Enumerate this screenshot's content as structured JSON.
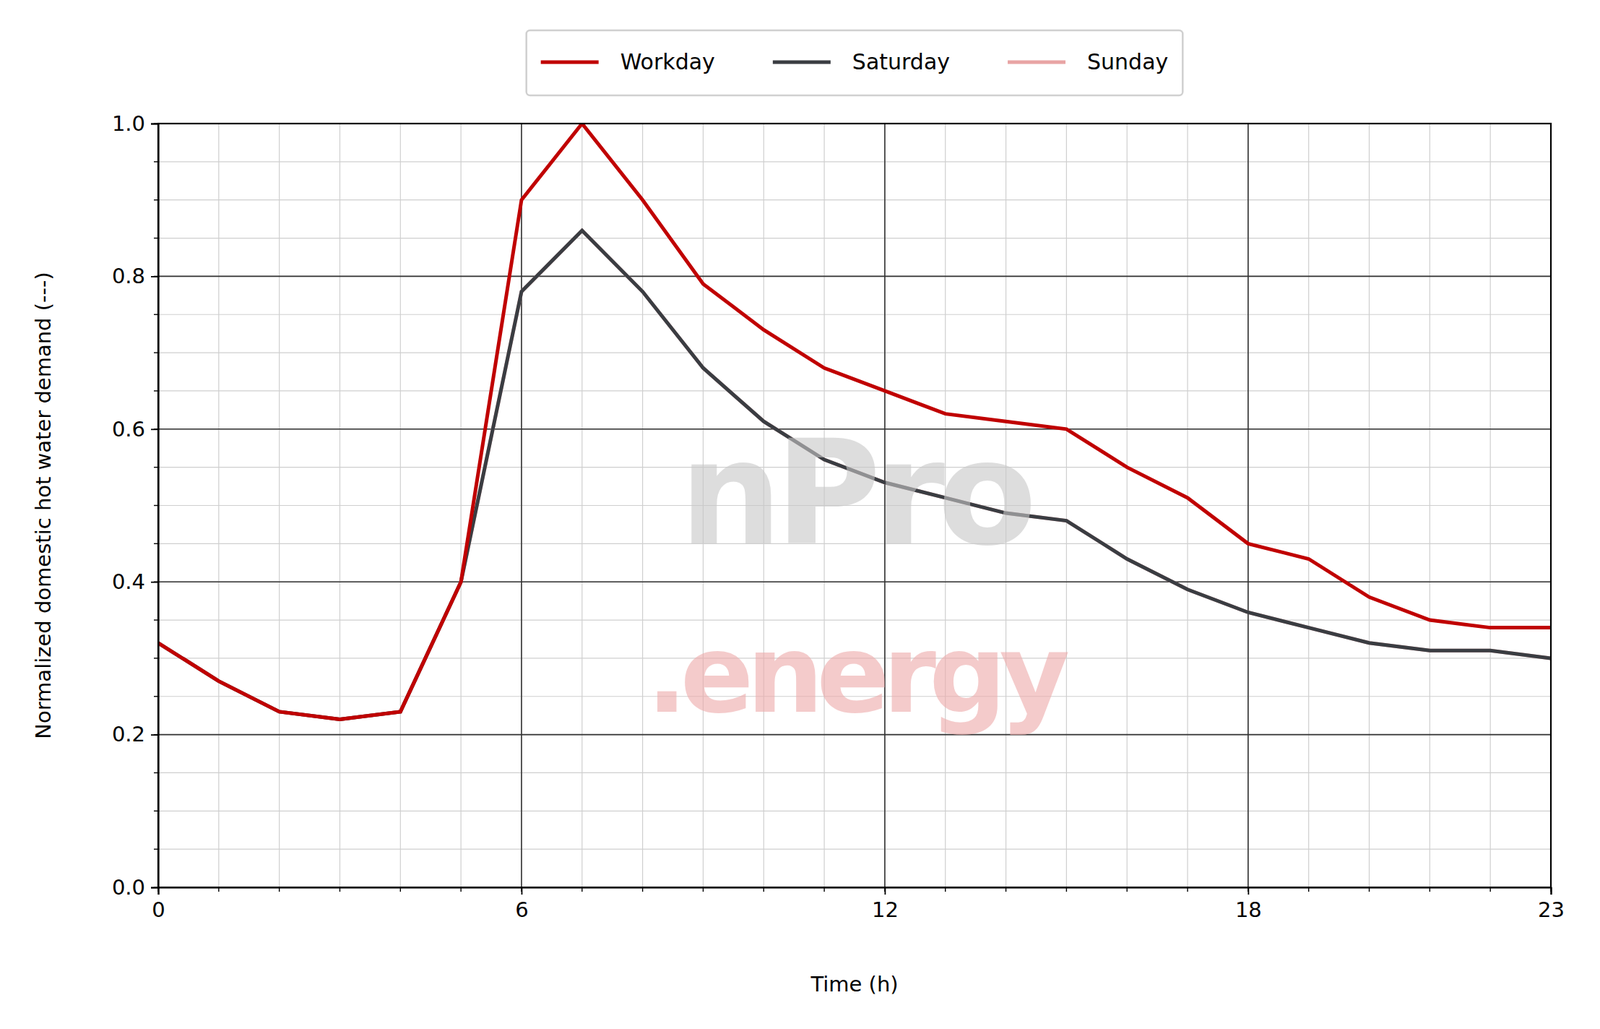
{
  "chart_data": {
    "type": "line",
    "x_label": "Time (h)",
    "y_label": "Normalized domestic hot water demand (---)",
    "annotations": [
      "nPro",
      ".energy"
    ],
    "x": [
      0,
      1,
      2,
      3,
      4,
      5,
      6,
      7,
      8,
      9,
      10,
      11,
      12,
      13,
      14,
      15,
      16,
      17,
      18,
      19,
      20,
      21,
      22,
      23
    ],
    "series": [
      {
        "name": "Workday",
        "color": "#c00000",
        "values": [
          0.32,
          0.27,
          0.23,
          0.22,
          0.23,
          0.4,
          0.9,
          1.0,
          0.9,
          0.79,
          0.73,
          0.68,
          0.65,
          0.62,
          0.61,
          0.6,
          0.55,
          0.51,
          0.45,
          0.43,
          0.38,
          0.35,
          0.34,
          0.34
        ]
      },
      {
        "name": "Saturday",
        "color": "#3a3d42",
        "values": [
          0.32,
          0.27,
          0.23,
          0.22,
          0.23,
          0.4,
          0.78,
          0.86,
          0.78,
          0.68,
          0.61,
          0.56,
          0.53,
          0.51,
          0.49,
          0.48,
          0.43,
          0.39,
          0.36,
          0.34,
          0.32,
          0.31,
          0.31,
          0.3
        ]
      },
      {
        "name": "Sunday",
        "color": "#e8a4a4",
        "values": [
          0.32,
          0.27,
          0.23,
          0.22,
          0.23,
          0.4,
          0.78,
          0.86,
          0.78,
          0.68,
          0.61,
          0.56,
          0.53,
          0.51,
          0.49,
          0.48,
          0.43,
          0.39,
          0.36,
          0.34,
          0.32,
          0.31,
          0.31,
          0.3
        ]
      }
    ],
    "xlim": [
      0,
      23
    ],
    "xticks": [
      0,
      6,
      12,
      18,
      23
    ],
    "ylim": [
      0,
      1
    ],
    "yticks": [
      {
        "value": 0,
        "label": "0.0"
      },
      0.2,
      0.4,
      0.6,
      0.8,
      {
        "value": 1,
        "label": "1.0"
      }
    ],
    "grid": true,
    "legend": "top"
  }
}
